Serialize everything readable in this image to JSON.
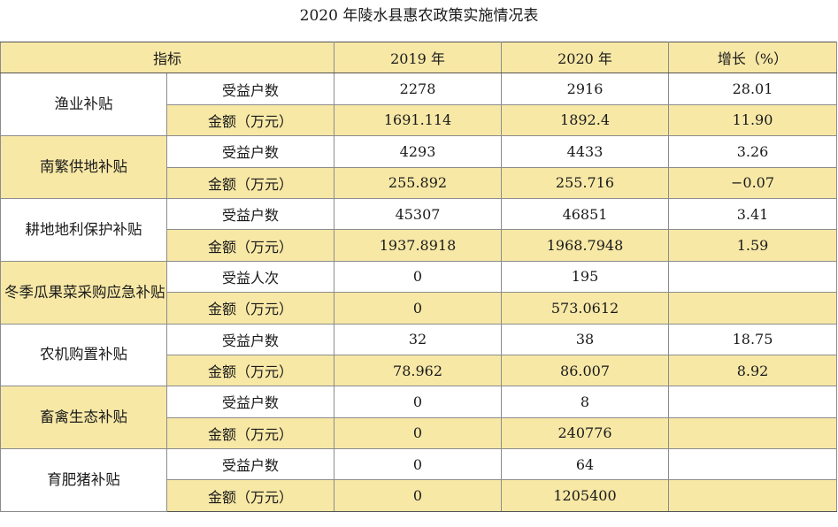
{
  "title": "2020 年陵水县惠农政策实施情况表",
  "headers": {
    "indicator": "指标",
    "y2019": "2019 年",
    "y2020": "2020 年",
    "growth": "增长（%）"
  },
  "groups": [
    {
      "name": "渔业补贴",
      "rows": [
        {
          "metric": "受益户数",
          "y2019": "2278",
          "y2020": "2916",
          "growth": "28.01"
        },
        {
          "metric": "金额（万元）",
          "y2019": "1691.114",
          "y2020": "1892.4",
          "growth": "11.90"
        }
      ]
    },
    {
      "name": "南繁供地补贴",
      "rows": [
        {
          "metric": "受益户数",
          "y2019": "4293",
          "y2020": "4433",
          "growth": "3.26"
        },
        {
          "metric": "金额（万元）",
          "y2019": "255.892",
          "y2020": "255.716",
          "growth": "−0.07"
        }
      ]
    },
    {
      "name": "耕地地利保护补贴",
      "rows": [
        {
          "metric": "受益户数",
          "y2019": "45307",
          "y2020": "46851",
          "growth": "3.41"
        },
        {
          "metric": "金额（万元）",
          "y2019": "1937.8918",
          "y2020": "1968.7948",
          "growth": "1.59"
        }
      ]
    },
    {
      "name": "冬季瓜果菜采购应急补贴",
      "rows": [
        {
          "metric": "受益人次",
          "y2019": "0",
          "y2020": "195",
          "growth": ""
        },
        {
          "metric": "金额（万元）",
          "y2019": "0",
          "y2020": "573.0612",
          "growth": ""
        }
      ]
    },
    {
      "name": "农机购置补贴",
      "rows": [
        {
          "metric": "受益户数",
          "y2019": "32",
          "y2020": "38",
          "growth": "18.75"
        },
        {
          "metric": "金额（万元）",
          "y2019": "78.962",
          "y2020": "86.007",
          "growth": "8.92"
        }
      ]
    },
    {
      "name": "畜禽生态补贴",
      "rows": [
        {
          "metric": "受益户数",
          "y2019": "0",
          "y2020": "8",
          "growth": ""
        },
        {
          "metric": "金额（万元）",
          "y2019": "0",
          "y2020": "240776",
          "growth": ""
        }
      ]
    },
    {
      "name": "育肥猪补贴",
      "rows": [
        {
          "metric": "受益户数",
          "y2019": "0",
          "y2020": "64",
          "growth": ""
        },
        {
          "metric": "金额（万元）",
          "y2019": "0",
          "y2020": "1205400",
          "growth": ""
        }
      ]
    }
  ]
}
